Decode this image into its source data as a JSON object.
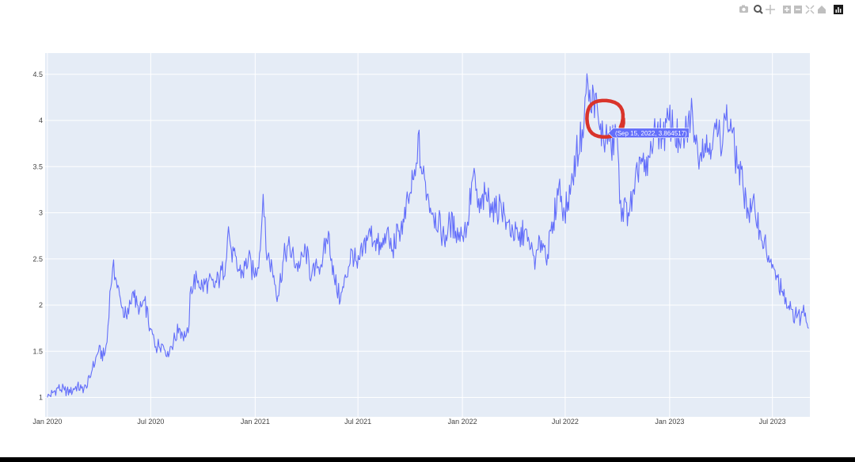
{
  "modebar": {
    "buttons": [
      "camera-icon",
      "zoom-icon",
      "pan-icon",
      "zoom-in-icon",
      "zoom-out-icon",
      "autoscale-icon",
      "reset-axes-icon",
      "plotly-logo-icon"
    ]
  },
  "hover": {
    "label": "(Sep 15, 2022, 3.864517)",
    "x": "2022-09-15",
    "y": 3.864517,
    "color": "#636efa"
  },
  "annotation": {
    "type": "hand-drawn circle",
    "color": "#d9342b",
    "around": "2022-09-15"
  },
  "chart_data": {
    "type": "line",
    "title": "",
    "xlabel": "",
    "ylabel": "",
    "x_range": [
      "2019-12-28",
      "2023-09-05"
    ],
    "ylim": [
      0.79,
      4.73
    ],
    "grid": true,
    "legend": "none",
    "colors": {
      "plot_bg": "#e5ecf6",
      "grid": "#ffffff",
      "line": "#636efa"
    },
    "x_ticks": [
      {
        "date": "2020-01-01",
        "label": "Jan 2020"
      },
      {
        "date": "2020-07-01",
        "label": "Jul 2020"
      },
      {
        "date": "2021-01-01",
        "label": "Jan 2021"
      },
      {
        "date": "2021-07-01",
        "label": "Jul 2021"
      },
      {
        "date": "2022-01-01",
        "label": "Jan 2022"
      },
      {
        "date": "2022-07-01",
        "label": "Jul 2022"
      },
      {
        "date": "2023-01-01",
        "label": "Jan 2023"
      },
      {
        "date": "2023-07-01",
        "label": "Jul 2023"
      }
    ],
    "y_ticks": [
      {
        "value": 1,
        "label": "1"
      },
      {
        "value": 1.5,
        "label": "1.5"
      },
      {
        "value": 2,
        "label": "2"
      },
      {
        "value": 2.5,
        "label": "2.5"
      },
      {
        "value": 3,
        "label": "3"
      },
      {
        "value": 3.5,
        "label": "3.5"
      },
      {
        "value": 4,
        "label": "4"
      },
      {
        "value": 4.5,
        "label": "4.5"
      }
    ],
    "series": [
      {
        "points": [
          [
            "2020-01-01",
            1.0
          ],
          [
            "2020-01-10",
            1.05
          ],
          [
            "2020-01-20",
            1.1
          ],
          [
            "2020-01-31",
            1.08
          ],
          [
            "2020-02-10",
            1.05
          ],
          [
            "2020-02-20",
            1.12
          ],
          [
            "2020-03-01",
            1.1
          ],
          [
            "2020-03-10",
            1.1
          ],
          [
            "2020-03-20",
            1.3
          ],
          [
            "2020-03-31",
            1.5
          ],
          [
            "2020-04-10",
            1.45
          ],
          [
            "2020-04-15",
            1.6
          ],
          [
            "2020-04-20",
            2.15
          ],
          [
            "2020-04-25",
            2.4
          ],
          [
            "2020-04-30",
            2.3
          ],
          [
            "2020-05-10",
            2.0
          ],
          [
            "2020-05-20",
            1.85
          ],
          [
            "2020-05-31",
            2.15
          ],
          [
            "2020-06-10",
            1.9
          ],
          [
            "2020-06-20",
            2.05
          ],
          [
            "2020-06-30",
            1.75
          ],
          [
            "2020-07-10",
            1.55
          ],
          [
            "2020-07-20",
            1.58
          ],
          [
            "2020-07-31",
            1.5
          ],
          [
            "2020-08-10",
            1.6
          ],
          [
            "2020-08-20",
            1.75
          ],
          [
            "2020-08-31",
            1.65
          ],
          [
            "2020-09-05",
            1.7
          ],
          [
            "2020-09-10",
            2.2
          ],
          [
            "2020-09-20",
            2.3
          ],
          [
            "2020-09-30",
            2.2
          ],
          [
            "2020-10-10",
            2.25
          ],
          [
            "2020-10-20",
            2.2
          ],
          [
            "2020-10-31",
            2.3
          ],
          [
            "2020-11-10",
            2.45
          ],
          [
            "2020-11-15",
            2.85
          ],
          [
            "2020-11-20",
            2.6
          ],
          [
            "2020-11-30",
            2.4
          ],
          [
            "2020-12-10",
            2.35
          ],
          [
            "2020-12-20",
            2.5
          ],
          [
            "2020-12-31",
            2.3
          ],
          [
            "2021-01-10",
            2.6
          ],
          [
            "2021-01-15",
            3.2
          ],
          [
            "2021-01-20",
            2.6
          ],
          [
            "2021-01-31",
            2.4
          ],
          [
            "2021-02-10",
            2.1
          ],
          [
            "2021-02-20",
            2.5
          ],
          [
            "2021-02-28",
            2.65
          ],
          [
            "2021-03-10",
            2.5
          ],
          [
            "2021-03-20",
            2.4
          ],
          [
            "2021-03-31",
            2.6
          ],
          [
            "2021-04-10",
            2.3
          ],
          [
            "2021-04-20",
            2.4
          ],
          [
            "2021-04-30",
            2.5
          ],
          [
            "2021-05-10",
            2.8
          ],
          [
            "2021-05-20",
            2.3
          ],
          [
            "2021-05-31",
            2.05
          ],
          [
            "2021-06-10",
            2.3
          ],
          [
            "2021-06-20",
            2.6
          ],
          [
            "2021-06-30",
            2.4
          ],
          [
            "2021-07-10",
            2.6
          ],
          [
            "2021-07-20",
            2.8
          ],
          [
            "2021-07-31",
            2.7
          ],
          [
            "2021-08-10",
            2.6
          ],
          [
            "2021-08-20",
            2.75
          ],
          [
            "2021-08-31",
            2.6
          ],
          [
            "2021-09-10",
            2.8
          ],
          [
            "2021-09-20",
            2.9
          ],
          [
            "2021-09-30",
            3.2
          ],
          [
            "2021-10-10",
            3.4
          ],
          [
            "2021-10-15",
            3.85
          ],
          [
            "2021-10-20",
            3.5
          ],
          [
            "2021-10-31",
            3.2
          ],
          [
            "2021-11-10",
            3.0
          ],
          [
            "2021-11-20",
            2.9
          ],
          [
            "2021-11-30",
            2.7
          ],
          [
            "2021-12-10",
            2.9
          ],
          [
            "2021-12-20",
            2.8
          ],
          [
            "2021-12-31",
            2.75
          ],
          [
            "2022-01-10",
            2.9
          ],
          [
            "2022-01-20",
            3.4
          ],
          [
            "2022-01-31",
            3.0
          ],
          [
            "2022-02-10",
            3.2
          ],
          [
            "2022-02-20",
            3.1
          ],
          [
            "2022-02-28",
            3.0
          ],
          [
            "2022-03-10",
            3.1
          ],
          [
            "2022-03-20",
            2.9
          ],
          [
            "2022-03-31",
            2.8
          ],
          [
            "2022-04-10",
            2.7
          ],
          [
            "2022-04-20",
            2.8
          ],
          [
            "2022-04-30",
            2.6
          ],
          [
            "2022-05-10",
            2.5
          ],
          [
            "2022-05-20",
            2.7
          ],
          [
            "2022-05-31",
            2.55
          ],
          [
            "2022-06-10",
            2.9
          ],
          [
            "2022-06-20",
            3.3
          ],
          [
            "2022-06-30",
            3.0
          ],
          [
            "2022-07-10",
            3.2
          ],
          [
            "2022-07-20",
            3.6
          ],
          [
            "2022-07-31",
            3.9
          ],
          [
            "2022-08-05",
            4.25
          ],
          [
            "2022-08-10",
            4.4
          ],
          [
            "2022-08-15",
            4.1
          ],
          [
            "2022-08-20",
            4.3
          ],
          [
            "2022-08-31",
            3.9
          ],
          [
            "2022-09-10",
            3.8
          ],
          [
            "2022-09-15",
            3.86
          ],
          [
            "2022-09-20",
            3.7
          ],
          [
            "2022-09-30",
            3.9
          ],
          [
            "2022-10-05",
            3.1
          ],
          [
            "2022-10-10",
            3.05
          ],
          [
            "2022-10-20",
            3.0
          ],
          [
            "2022-10-31",
            3.2
          ],
          [
            "2022-11-10",
            3.6
          ],
          [
            "2022-11-20",
            3.4
          ],
          [
            "2022-11-30",
            3.7
          ],
          [
            "2022-12-10",
            3.9
          ],
          [
            "2022-12-20",
            3.8
          ],
          [
            "2022-12-31",
            4.0
          ],
          [
            "2023-01-10",
            3.9
          ],
          [
            "2023-01-20",
            3.7
          ],
          [
            "2023-01-31",
            3.9
          ],
          [
            "2023-02-10",
            4.1
          ],
          [
            "2023-02-20",
            3.6
          ],
          [
            "2023-02-28",
            3.8
          ],
          [
            "2023-03-10",
            3.7
          ],
          [
            "2023-03-20",
            3.9
          ],
          [
            "2023-03-31",
            3.8
          ],
          [
            "2023-04-10",
            4.0
          ],
          [
            "2023-04-20",
            3.9
          ],
          [
            "2023-04-30",
            3.5
          ],
          [
            "2023-05-10",
            3.3
          ],
          [
            "2023-05-20",
            3.0
          ],
          [
            "2023-05-31",
            3.05
          ],
          [
            "2023-06-10",
            2.8
          ],
          [
            "2023-06-20",
            2.6
          ],
          [
            "2023-06-30",
            2.4
          ],
          [
            "2023-07-10",
            2.3
          ],
          [
            "2023-07-20",
            2.1
          ],
          [
            "2023-07-31",
            1.95
          ],
          [
            "2023-08-10",
            1.9
          ],
          [
            "2023-08-20",
            1.85
          ],
          [
            "2023-08-25",
            2.0
          ],
          [
            "2023-08-31",
            1.8
          ],
          [
            "2023-09-03",
            1.75
          ]
        ]
      }
    ]
  }
}
